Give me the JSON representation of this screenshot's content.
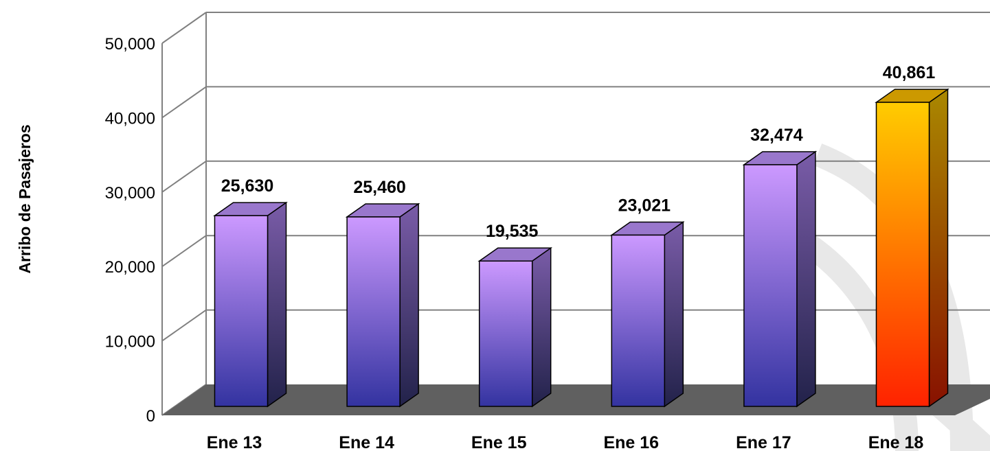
{
  "chart_data": {
    "type": "bar",
    "title": "",
    "xlabel": "",
    "ylabel": "Arribo de Pasajeros",
    "categories": [
      "Ene 13",
      "Ene 14",
      "Ene 15",
      "Ene 16",
      "Ene 17",
      "Ene 18"
    ],
    "values": [
      25630,
      25460,
      19535,
      23021,
      32474,
      40861
    ],
    "value_labels": [
      "25,630",
      "25,460",
      "19,535",
      "23,021",
      "32,474",
      "40,861"
    ],
    "ylim": [
      0,
      50000
    ],
    "yticks": [
      0,
      10000,
      20000,
      30000,
      40000,
      50000
    ],
    "ytick_labels": [
      "0",
      "10,000",
      "20,000",
      "30,000",
      "40,000",
      "50,000"
    ],
    "grid": true,
    "legend": "none",
    "three_d": true,
    "highlight_index": 5,
    "colors": {
      "bar_top": "#cc99ff",
      "bar_bottom": "#3333a0",
      "bar_side_top": "#7a5ca8",
      "bar_side_bottom": "#22224a",
      "bar_cap": "#9977cc",
      "highlight_top": "#ffcc00",
      "highlight_bottom": "#ff2200",
      "highlight_side_top": "#aa8800",
      "highlight_side_bottom": "#881100",
      "highlight_cap": "#cc9900",
      "floor": "#606060",
      "grid": "#808080"
    }
  }
}
